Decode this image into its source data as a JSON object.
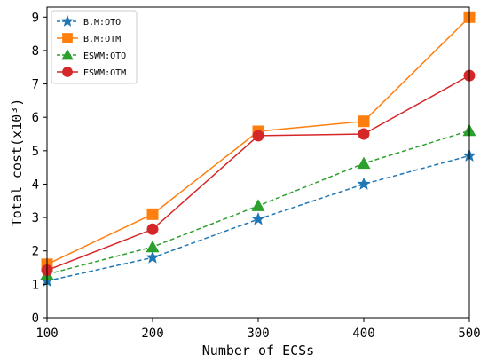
{
  "chart_data": {
    "type": "line",
    "title": "",
    "xlabel": "Number of ECSs",
    "ylabel": "Total cost(x10³)",
    "x": [
      100,
      200,
      300,
      400,
      500
    ],
    "xticks": [
      "100",
      "200",
      "300",
      "400",
      "500"
    ],
    "yticks": [
      "0",
      "1",
      "2",
      "3",
      "4",
      "5",
      "6",
      "7",
      "8",
      "9"
    ],
    "xlim": [
      100,
      500
    ],
    "ylim": [
      0,
      9.3
    ],
    "grid": false,
    "legend_position": "top-left",
    "series": [
      {
        "name": "B.M:OTO",
        "values": [
          1.1,
          1.8,
          2.95,
          4.0,
          4.85
        ],
        "color": "#1f77b4",
        "linestyle": "dashed",
        "marker": "star"
      },
      {
        "name": "B.M:OTM",
        "values": [
          1.6,
          3.1,
          5.58,
          5.88,
          9.0
        ],
        "color": "#ff7f0e",
        "linestyle": "solid",
        "marker": "square"
      },
      {
        "name": "ESWM:OTO",
        "values": [
          1.3,
          2.12,
          3.35,
          4.62,
          5.6
        ],
        "color": "#2ca02c",
        "linestyle": "dashed",
        "marker": "triangle"
      },
      {
        "name": "ESWM:OTM",
        "values": [
          1.42,
          2.65,
          5.45,
          5.5,
          7.25
        ],
        "color": "#d62728",
        "linestyle": "solid",
        "marker": "circle"
      }
    ]
  }
}
